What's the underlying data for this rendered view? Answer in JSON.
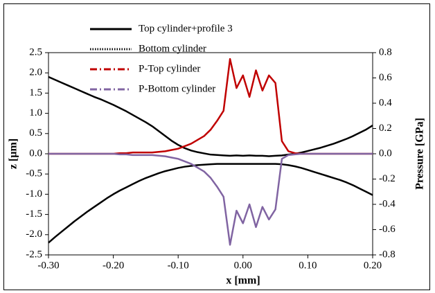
{
  "chart_data": {
    "type": "line",
    "x": [
      -0.3,
      -0.29,
      -0.28,
      -0.27,
      -0.26,
      -0.25,
      -0.24,
      -0.23,
      -0.22,
      -0.21,
      -0.2,
      -0.19,
      -0.18,
      -0.17,
      -0.16,
      -0.15,
      -0.14,
      -0.13,
      -0.12,
      -0.11,
      -0.1,
      -0.09,
      -0.08,
      -0.07,
      -0.06,
      -0.05,
      -0.04,
      -0.03,
      -0.02,
      -0.01,
      0.0,
      0.01,
      0.02,
      0.03,
      0.04,
      0.05,
      0.06,
      0.07,
      0.08,
      0.09,
      0.1,
      0.11,
      0.12,
      0.13,
      0.14,
      0.15,
      0.16,
      0.17,
      0.18,
      0.19,
      0.2
    ],
    "series": [
      {
        "name": "Top cylinder+profile 3",
        "color": "#000000",
        "dash": "solid",
        "values": [
          1.9,
          1.83,
          1.76,
          1.69,
          1.62,
          1.55,
          1.48,
          1.41,
          1.35,
          1.28,
          1.21,
          1.13,
          1.05,
          0.96,
          0.87,
          0.78,
          0.68,
          0.56,
          0.44,
          0.32,
          0.22,
          0.14,
          0.08,
          0.04,
          0.01,
          -0.02,
          -0.03,
          -0.04,
          -0.05,
          -0.04,
          -0.05,
          -0.04,
          -0.05,
          -0.05,
          -0.06,
          -0.05,
          -0.04,
          -0.02,
          0.0,
          0.03,
          0.07,
          0.11,
          0.15,
          0.2,
          0.25,
          0.31,
          0.37,
          0.44,
          0.52,
          0.6,
          0.7
        ]
      },
      {
        "name": "Bottom cylinder",
        "color": "#000000",
        "dash": "dotted",
        "values": [
          -2.2,
          -2.06,
          -1.93,
          -1.8,
          -1.67,
          -1.55,
          -1.43,
          -1.32,
          -1.21,
          -1.1,
          -1.0,
          -0.91,
          -0.83,
          -0.75,
          -0.67,
          -0.6,
          -0.54,
          -0.48,
          -0.43,
          -0.39,
          -0.35,
          -0.32,
          -0.3,
          -0.28,
          -0.27,
          -0.26,
          -0.25,
          -0.25,
          -0.25,
          -0.25,
          -0.25,
          -0.25,
          -0.25,
          -0.25,
          -0.25,
          -0.25,
          -0.26,
          -0.28,
          -0.31,
          -0.35,
          -0.4,
          -0.45,
          -0.5,
          -0.55,
          -0.6,
          -0.65,
          -0.71,
          -0.78,
          -0.86,
          -0.94,
          -1.02
        ]
      },
      {
        "name": "P-Top cylinder",
        "color": "#c00000",
        "dash": "dashdot",
        "axis": "y2",
        "values": [
          0,
          0,
          0,
          0,
          0,
          0,
          0,
          0,
          0,
          0,
          0,
          0.005,
          0.005,
          0.01,
          0.01,
          0.01,
          0.01,
          0.015,
          0.02,
          0.03,
          0.04,
          0.06,
          0.08,
          0.11,
          0.14,
          0.19,
          0.26,
          0.34,
          0.75,
          0.52,
          0.62,
          0.45,
          0.66,
          0.5,
          0.62,
          0.56,
          0.1,
          0.02,
          0.005,
          0,
          0,
          0,
          0,
          0,
          0,
          0,
          0,
          0,
          0,
          0,
          0
        ]
      },
      {
        "name": "P-Bottom cylinder",
        "color": "#8064a2",
        "dash": "dashdot",
        "axis": "y2",
        "values": [
          0,
          0,
          0,
          0,
          0,
          0,
          0,
          0,
          0,
          0,
          0,
          -0.005,
          -0.005,
          -0.01,
          -0.01,
          -0.01,
          -0.01,
          -0.015,
          -0.02,
          -0.03,
          -0.04,
          -0.06,
          -0.08,
          -0.11,
          -0.14,
          -0.19,
          -0.26,
          -0.34,
          -0.72,
          -0.45,
          -0.55,
          -0.4,
          -0.58,
          -0.42,
          -0.52,
          -0.44,
          -0.04,
          -0.01,
          -0.005,
          0,
          0,
          0,
          0,
          0,
          0,
          0,
          0,
          0,
          0,
          0,
          0
        ]
      }
    ],
    "x_label": "x [mm]",
    "y_label": "z [µm]",
    "y2_label": "Pressure [GPa]",
    "xlim": [
      -0.3,
      0.2
    ],
    "xticks": [
      {
        "value": -0.3,
        "label": "-0.30"
      },
      {
        "value": -0.2,
        "label": "-0.20"
      },
      {
        "value": -0.1,
        "label": "-0.10"
      },
      {
        "value": 0,
        "label": "0.00"
      },
      {
        "value": 0.1,
        "label": "0.10"
      },
      {
        "value": 0.2,
        "label": "0.20"
      }
    ],
    "ylim": [
      -2.5,
      2.5
    ],
    "yticks": [
      -2.5,
      {
        "value": -2,
        "label": "-2.0"
      },
      -1.5,
      {
        "value": -1,
        "label": "-1.0"
      },
      -0.5,
      {
        "value": 0,
        "label": "0.0"
      },
      0.5,
      {
        "value": 1,
        "label": "1.0"
      },
      1.5,
      {
        "value": 2,
        "label": "2.0"
      },
      2.5
    ],
    "y2lim": [
      -0.8,
      0.8
    ],
    "y2ticks": [
      -0.8,
      -0.6,
      -0.4,
      -0.2,
      {
        "value": 0,
        "label": "0.0"
      },
      0.2,
      0.4,
      0.6,
      0.8
    ],
    "grid": false,
    "legend": "upper-left"
  }
}
